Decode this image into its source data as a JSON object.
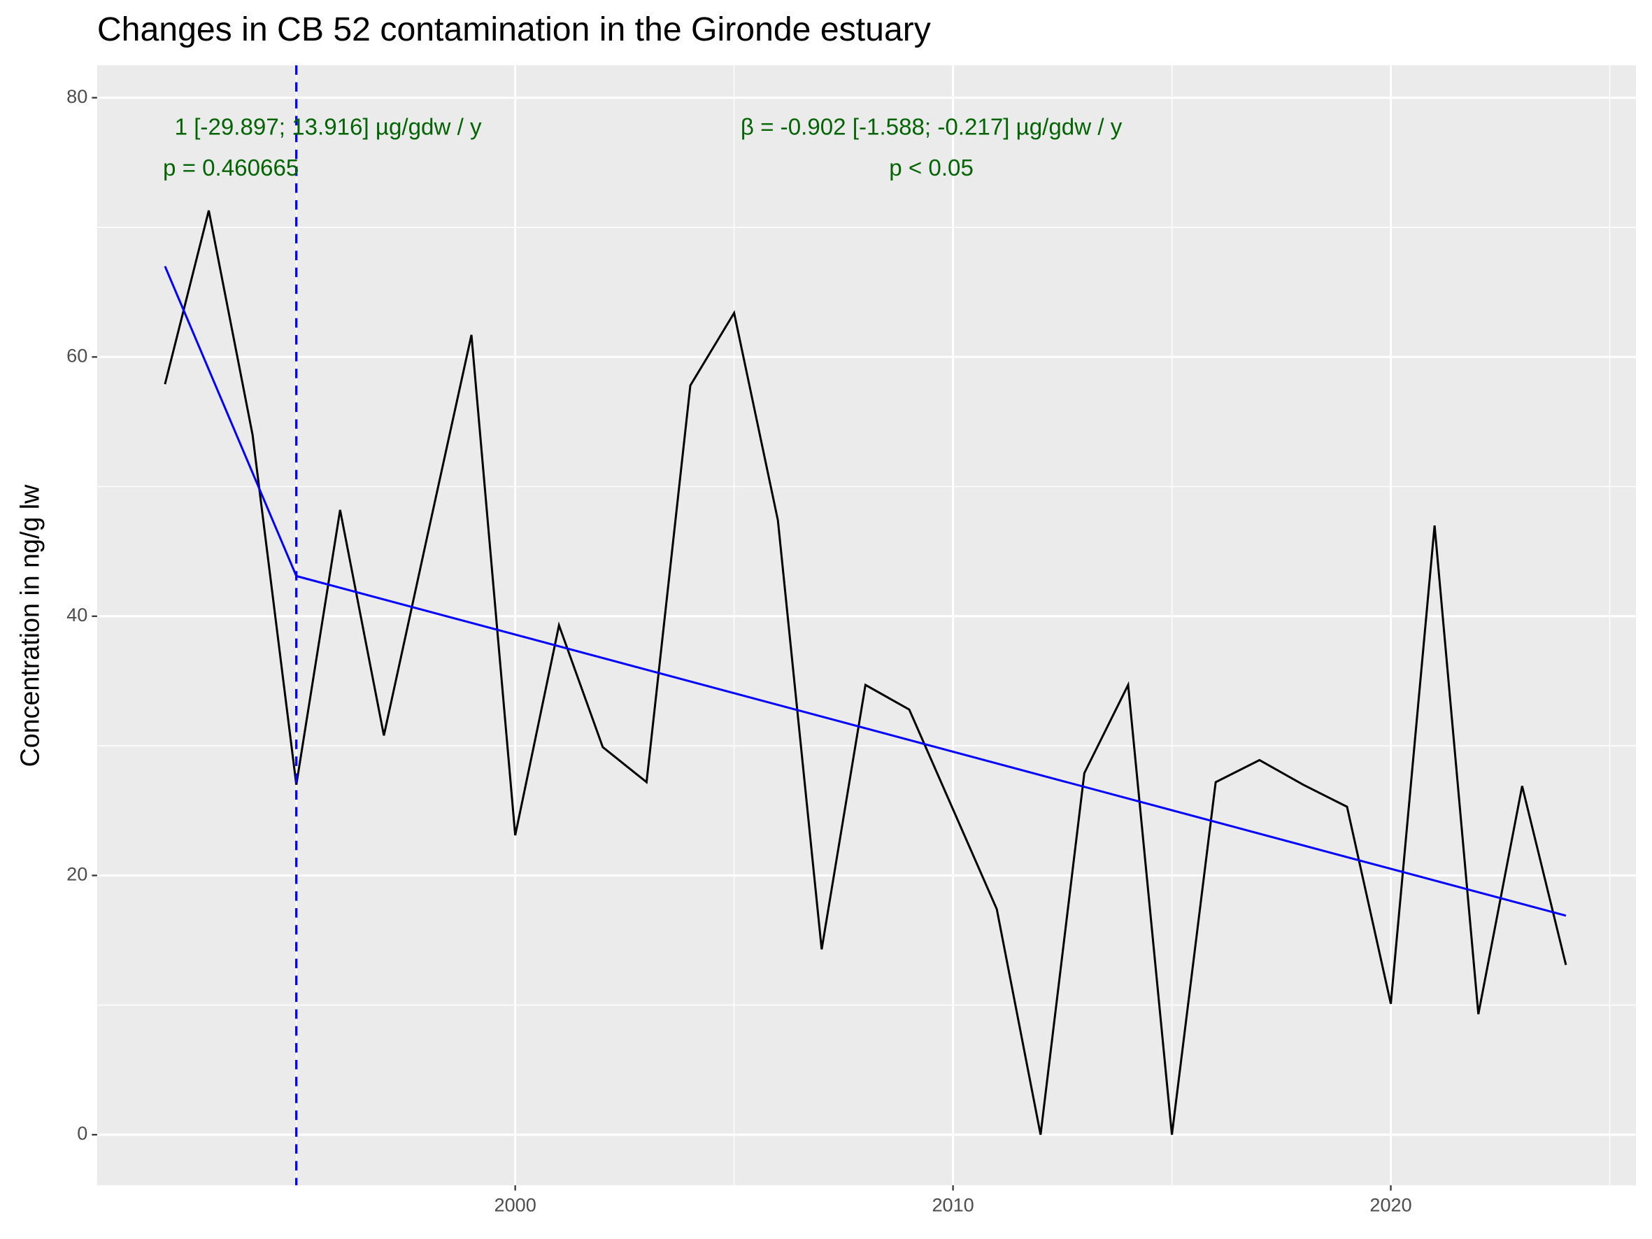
{
  "chart_data": {
    "type": "line",
    "title": "Changes in CB 52 contamination in the Gironde estuary",
    "y_label": "Concentration in ng/g lw",
    "x": [
      1992,
      1993,
      1994,
      1995,
      1996,
      1997,
      1998,
      1999,
      2000,
      2001,
      2002,
      2003,
      2004,
      2005,
      2006,
      2007,
      2008,
      2009,
      2010,
      2011,
      2012,
      2013,
      2014,
      2015,
      2016,
      2017,
      2018,
      2019,
      2020,
      2021,
      2022,
      2023,
      2024
    ],
    "values": [
      57.9,
      71.3,
      54.0,
      27.0,
      48.2,
      30.8,
      46.3,
      61.7,
      23.1,
      39.3,
      29.9,
      27.2,
      57.8,
      63.4,
      47.4,
      14.3,
      34.7,
      32.8,
      25.1,
      17.4,
      0,
      27.9,
      34.7,
      0,
      27.2,
      28.9,
      27.0,
      25.3,
      10.1,
      47.0,
      9.3,
      26.9,
      13.1
    ],
    "color": "#000000",
    "trend": [
      {
        "x": [
          1992,
          1995
        ],
        "values": [
          67.0,
          43.1
        ]
      },
      {
        "x": [
          1995,
          2024
        ],
        "values": [
          43.1,
          16.9
        ]
      }
    ],
    "trend_color": "#0000ff",
    "breakpoint": 1995,
    "annotations": [
      [
        "1 [-29.897; 13.916] µg/gdw / y",
        "p = 0.460665"
      ],
      [
        "β = -0.902 [-1.588; -0.217] µg/gdw / y",
        "p < 0.05"
      ]
    ],
    "annotation_color": "#006400",
    "xlim": [
      1990.45,
      2025.6
    ],
    "xticks": [
      2000,
      2010,
      2020
    ],
    "ylim": [
      -3.9,
      82.5
    ],
    "yticks": [
      0,
      20,
      40,
      60,
      80
    ],
    "grid": true
  }
}
